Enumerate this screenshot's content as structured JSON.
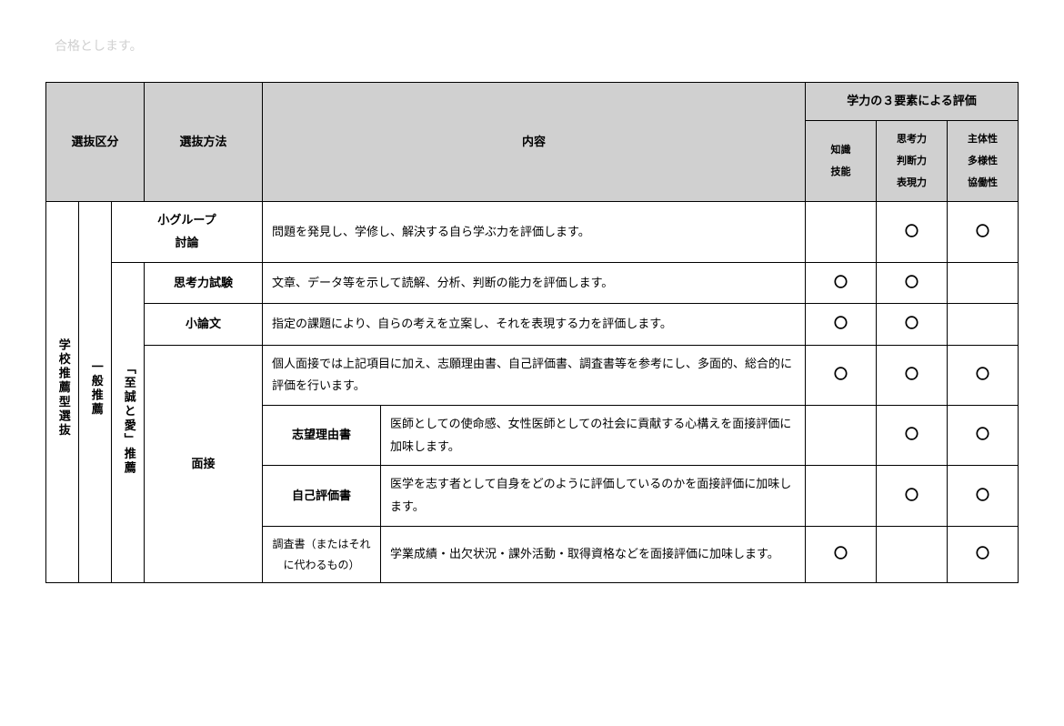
{
  "topFragment": "合格とします。",
  "headers": {
    "selectionCategory": "選抜区分",
    "selectionMethod": "選抜方法",
    "content": "内容",
    "evalGroup": "学力の３要素による評価",
    "eval1": "知識\n技能",
    "eval2": "思考力\n判断力\n表現力",
    "eval3": "主体性\n多様性\n協働性"
  },
  "categoryCol1": "学校推薦型選抜",
  "categoryCol2": "一般推薦",
  "categoryCol3": "「至誠と愛」推薦",
  "rows": [
    {
      "method": "小グループ\n討論",
      "content": "問題を発見し、学修し、解決する自ら学ぶ力を評価します。",
      "e1": "",
      "e2": "〇",
      "e3": "〇"
    },
    {
      "method": "思考力試験",
      "content": "文章、データ等を示して読解、分析、判断の能力を評価します。",
      "e1": "〇",
      "e2": "〇",
      "e3": ""
    },
    {
      "method": "小論文",
      "content": "指定の課題により、自らの考えを立案し、それを表現する力を評価します。",
      "e1": "〇",
      "e2": "〇",
      "e3": ""
    },
    {
      "method": "面接",
      "subItems": [
        {
          "content": "個人面接では上記項目に加え、志願理由書、自己評価書、調査書等を参考にし、多面的、総合的に評価を行います。",
          "e1": "〇",
          "e2": "〇",
          "e3": "〇"
        },
        {
          "label": "志望理由書",
          "content": "医師としての使命感、女性医師としての社会に貢献する心構えを面接評価に加味します。",
          "e1": "",
          "e2": "〇",
          "e3": "〇"
        },
        {
          "label": "自己評価書",
          "content": "医学を志す者として自身をどのように評価しているのかを面接評価に加味します。",
          "e1": "",
          "e2": "〇",
          "e3": "〇"
        },
        {
          "label": "調査書（またはそれに代わるもの）",
          "content": "学業成績・出欠状況・課外活動・取得資格などを面接評価に加味します。",
          "e1": "〇",
          "e2": "",
          "e3": "〇"
        }
      ]
    }
  ]
}
